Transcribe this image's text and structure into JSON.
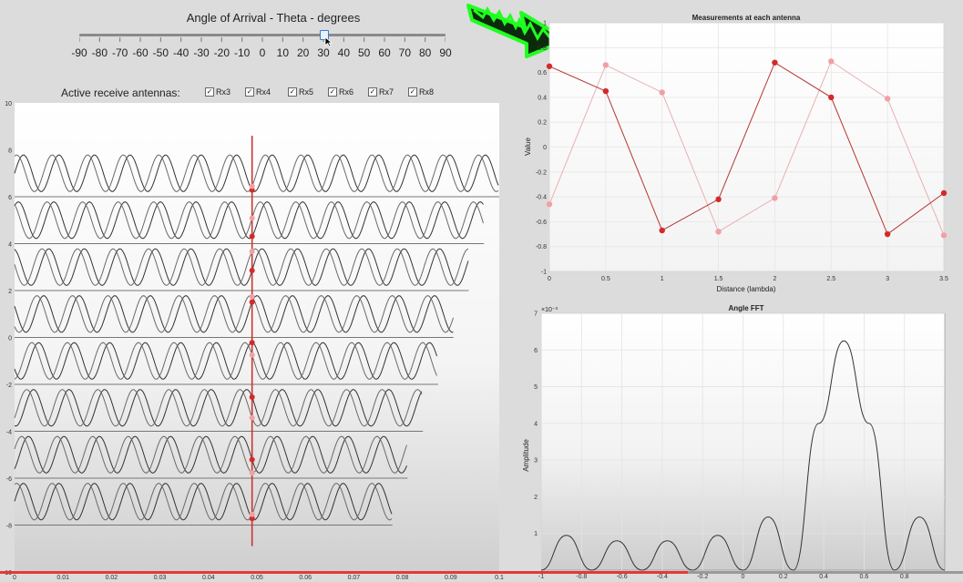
{
  "slider": {
    "title": "Angle of Arrival - Theta - degrees",
    "min": -90,
    "max": 90,
    "value": 30,
    "tick_labels": [
      "-90",
      "-80",
      "-70",
      "-60",
      "-50",
      "-40",
      "-30",
      "-20",
      "-10",
      "0",
      "10",
      "20",
      "30",
      "40",
      "50",
      "60",
      "70",
      "80",
      "90"
    ]
  },
  "antennas": {
    "label": "Active receive antennas:",
    "items": [
      {
        "label": "Rx3",
        "checked": true
      },
      {
        "label": "Rx4",
        "checked": true
      },
      {
        "label": "Rx5",
        "checked": true
      },
      {
        "label": "Rx6",
        "checked": true
      },
      {
        "label": "Rx7",
        "checked": true
      },
      {
        "label": "Rx8",
        "checked": true
      }
    ]
  },
  "wave_plot": {
    "y_ticks": [
      "10",
      "8",
      "6",
      "4",
      "2",
      "0",
      "-2",
      "-4",
      "-6",
      "-8",
      "-10"
    ],
    "x_ticks": [
      "0",
      "0.01",
      "0.02",
      "0.03",
      "0.04",
      "0.05",
      "0.06",
      "0.07",
      "0.08",
      "0.09",
      "0.1"
    ],
    "xlim": [
      0,
      0.1
    ],
    "ylim": [
      -10,
      10
    ],
    "marker_x": 0.049
  },
  "measurements": {
    "title": "Measurements at each antenna",
    "xlabel": "Distance (lambda)",
    "ylabel": "Value",
    "x_ticks": [
      "0",
      "0.5",
      "1",
      "1.5",
      "2",
      "2.5",
      "3",
      "3.5"
    ],
    "y_ticks": [
      "1",
      "0.8",
      "0.6",
      "0.4",
      "0.2",
      "0",
      "-0.2",
      "-0.4",
      "-0.6",
      "-0.8",
      "-1"
    ]
  },
  "fft": {
    "title": "Angle FFT",
    "exponent_label": "×10⁻³",
    "ylabel": "Amplitude",
    "x_ticks": [
      "-1",
      "-0.8",
      "-0.6",
      "-0.4",
      "-0.2",
      "0",
      "0.2",
      "0.4",
      "0.6",
      "0.8"
    ],
    "y_ticks": [
      "7",
      "6",
      "5",
      "4",
      "3",
      "2",
      "1"
    ]
  },
  "colors": {
    "dark_red": "#d42a2a",
    "light_red": "#f0a0a6",
    "wave": "#3a3a3a",
    "arrow_green": "#1aff1a",
    "progress": "#e53935"
  },
  "chart_data": [
    {
      "type": "line",
      "title": "Measurements at each antenna",
      "xlabel": "Distance (lambda)",
      "ylabel": "Value",
      "xlim": [
        0,
        3.5
      ],
      "ylim": [
        -1,
        1
      ],
      "grid": true,
      "x": [
        0,
        0.5,
        1,
        1.5,
        2,
        2.5,
        3,
        3.5
      ],
      "series": [
        {
          "values": [
            0.65,
            0.45,
            -0.67,
            -0.42,
            0.68,
            0.4,
            -0.7,
            -0.37
          ]
        },
        {
          "values": [
            -0.46,
            0.66,
            0.44,
            -0.68,
            -0.41,
            0.69,
            0.39,
            -0.71
          ]
        }
      ]
    },
    {
      "type": "line",
      "title": "Angle FFT",
      "ylabel": "Amplitude",
      "xlim": [
        -1,
        1
      ],
      "ylim": [
        0,
        7
      ],
      "y_scale_exponent": -3,
      "grid": true,
      "x": [
        -1,
        -0.875,
        -0.75,
        -0.625,
        -0.5,
        -0.375,
        -0.25,
        -0.125,
        0,
        0.125,
        0.25,
        0.375,
        0.5,
        0.625,
        0.75,
        0.875,
        1
      ],
      "series": [
        {
          "values": [
            0,
            0.95,
            0,
            0.8,
            0,
            0.8,
            0,
            0.95,
            0,
            1.45,
            0,
            4.0,
            6.25,
            4.0,
            0,
            1.45,
            0
          ]
        }
      ]
    },
    {
      "type": "line",
      "xlim": [
        0,
        0.1
      ],
      "ylim": [
        -10,
        10
      ],
      "offsets": [
        7,
        5,
        3,
        1,
        -1,
        -3,
        -5,
        -7
      ],
      "amplitude": 0.78,
      "marker_x": 0.049
    }
  ]
}
